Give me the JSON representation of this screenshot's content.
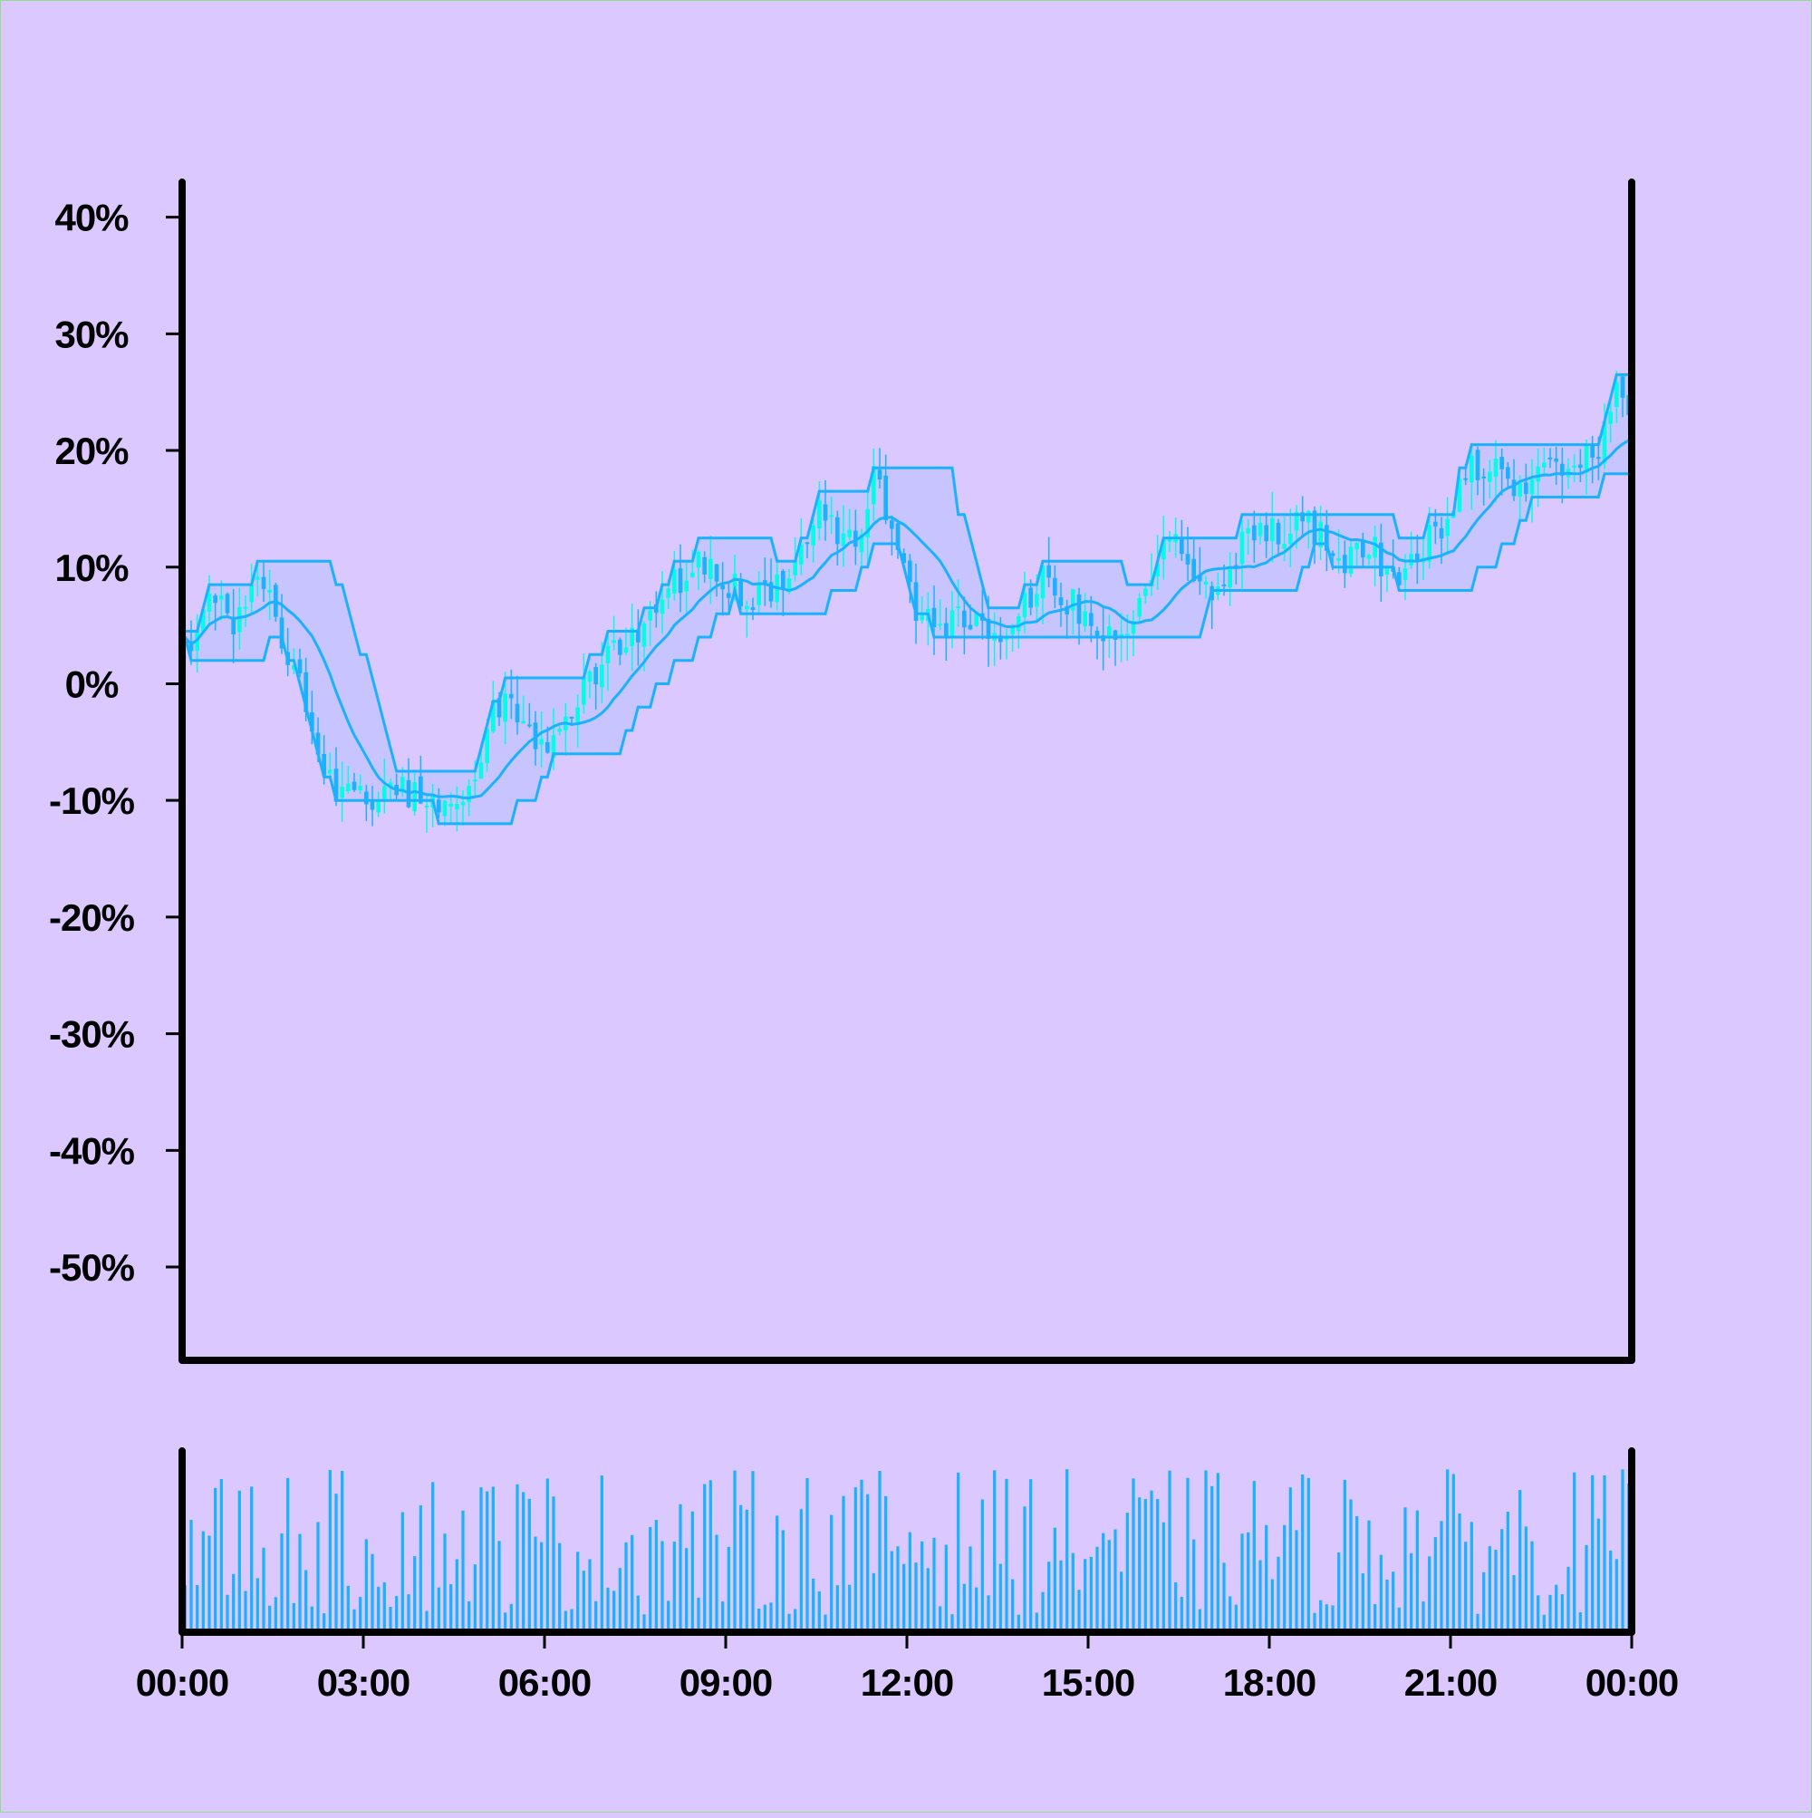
{
  "chart_data": {
    "type": "candlestick",
    "title": "",
    "xlabel": "",
    "ylabel": "",
    "ylim": [
      -0.58,
      0.43
    ],
    "y_ticks": [
      {
        "value": 0.4,
        "label": "40%"
      },
      {
        "value": 0.3,
        "label": "30%"
      },
      {
        "value": 0.2,
        "label": "20%"
      },
      {
        "value": 0.1,
        "label": "10%"
      },
      {
        "value": 0.0,
        "label": "0%"
      },
      {
        "value": -0.1,
        "label": "-10%"
      },
      {
        "value": -0.2,
        "label": "-20%"
      },
      {
        "value": -0.3,
        "label": "-30%"
      },
      {
        "value": -0.4,
        "label": "-40%"
      },
      {
        "value": -0.5,
        "label": "-50%"
      }
    ],
    "x_range_hours": [
      0,
      24
    ],
    "x_ticks": [
      {
        "value": 0,
        "label": "00:00"
      },
      {
        "value": 3,
        "label": "03:00"
      },
      {
        "value": 6,
        "label": "06:00"
      },
      {
        "value": 9,
        "label": "09:00"
      },
      {
        "value": 12,
        "label": "12:00"
      },
      {
        "value": 15,
        "label": "15:00"
      },
      {
        "value": 18,
        "label": "18:00"
      },
      {
        "value": 21,
        "label": "21:00"
      },
      {
        "value": 24,
        "label": "00:00"
      }
    ],
    "grid": false,
    "legend": "none",
    "colors": {
      "up": "#00ffe6",
      "down": "#1ab2ff",
      "line": "#1ab2ff",
      "band": "#c3c3ff",
      "volume": "#1ab2ff"
    },
    "price_path": [
      [
        0.0,
        0.03
      ],
      [
        0.4,
        0.06
      ],
      [
        0.6,
        0.09
      ],
      [
        0.9,
        0.05
      ],
      [
        1.25,
        0.1
      ],
      [
        1.6,
        0.05
      ],
      [
        1.9,
        0.01
      ],
      [
        2.2,
        -0.04
      ],
      [
        2.4,
        -0.08
      ],
      [
        2.8,
        -0.1
      ],
      [
        3.5,
        -0.09
      ],
      [
        4.3,
        -0.1
      ],
      [
        4.8,
        -0.09
      ],
      [
        5.1,
        -0.03
      ],
      [
        5.4,
        -0.01
      ],
      [
        5.65,
        -0.04
      ],
      [
        6.0,
        -0.06
      ],
      [
        6.5,
        -0.02
      ],
      [
        7.0,
        0.02
      ],
      [
        7.5,
        0.04
      ],
      [
        8.0,
        0.08
      ],
      [
        8.5,
        0.1
      ],
      [
        9.0,
        0.09
      ],
      [
        9.4,
        0.07
      ],
      [
        9.8,
        0.08
      ],
      [
        10.3,
        0.13
      ],
      [
        10.6,
        0.16
      ],
      [
        10.8,
        0.12
      ],
      [
        11.2,
        0.13
      ],
      [
        11.45,
        0.18
      ],
      [
        11.7,
        0.14
      ],
      [
        12.0,
        0.08
      ],
      [
        12.5,
        0.04
      ],
      [
        13.0,
        0.06
      ],
      [
        13.4,
        0.03
      ],
      [
        13.8,
        0.06
      ],
      [
        14.3,
        0.09
      ],
      [
        14.7,
        0.07
      ],
      [
        15.2,
        0.05
      ],
      [
        15.6,
        0.05
      ],
      [
        16.0,
        0.1
      ],
      [
        16.5,
        0.12
      ],
      [
        16.8,
        0.08
      ],
      [
        17.2,
        0.09
      ],
      [
        17.6,
        0.12
      ],
      [
        18.1,
        0.13
      ],
      [
        18.6,
        0.14
      ],
      [
        19.0,
        0.12
      ],
      [
        19.3,
        0.1
      ],
      [
        19.6,
        0.12
      ],
      [
        20.1,
        0.09
      ],
      [
        20.4,
        0.11
      ],
      [
        20.9,
        0.14
      ],
      [
        21.4,
        0.19
      ],
      [
        21.8,
        0.18
      ],
      [
        22.2,
        0.16
      ],
      [
        22.6,
        0.18
      ],
      [
        23.2,
        0.19
      ],
      [
        23.55,
        0.21
      ],
      [
        23.75,
        0.25
      ],
      [
        24.0,
        0.22
      ]
    ],
    "volume_scale_max": 1.0
  }
}
